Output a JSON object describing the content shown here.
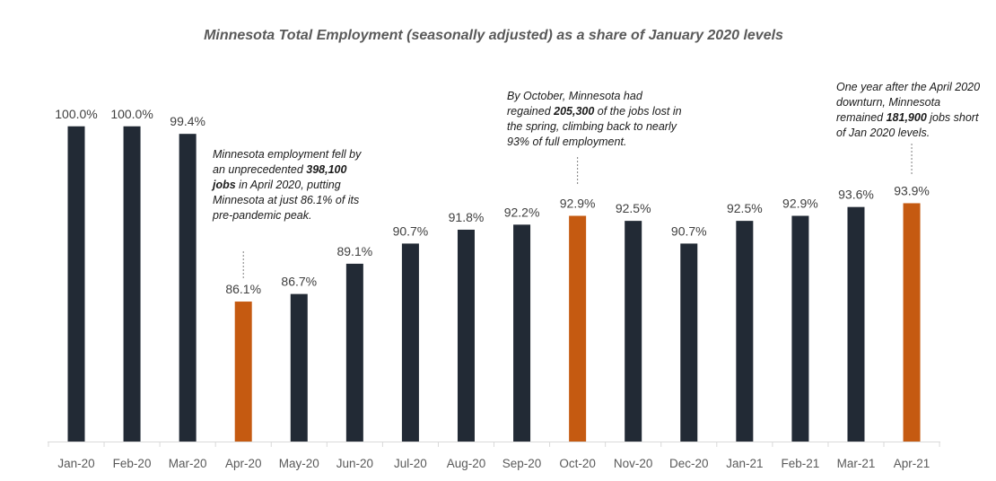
{
  "chart_data": {
    "type": "bar",
    "title": "Minnesota Total Employment (seasonally adjusted) as a share of January 2020 levels",
    "xlabel": "",
    "ylabel": "",
    "ylim": [
      75,
      100
    ],
    "grid": false,
    "categories": [
      "Jan-20",
      "Feb-20",
      "Mar-20",
      "Apr-20",
      "May-20",
      "Jun-20",
      "Jul-20",
      "Aug-20",
      "Sep-20",
      "Oct-20",
      "Nov-20",
      "Dec-20",
      "Jan-21",
      "Feb-21",
      "Mar-21",
      "Apr-21"
    ],
    "values": [
      100.0,
      100.0,
      99.4,
      86.1,
      86.7,
      89.1,
      90.7,
      91.8,
      92.2,
      92.9,
      92.5,
      90.7,
      92.5,
      92.9,
      93.6,
      93.9
    ],
    "data_labels": [
      "100.0%",
      "100.0%",
      "99.4%",
      "86.1%",
      "86.7%",
      "89.1%",
      "90.7%",
      "91.8%",
      "92.2%",
      "92.9%",
      "92.5%",
      "90.7%",
      "92.5%",
      "92.9%",
      "93.6%",
      "93.9%"
    ],
    "highlighted": [
      "Apr-20",
      "Oct-20",
      "Apr-21"
    ],
    "colors": {
      "default": "#222a35",
      "highlight": "#c55a11"
    },
    "annotations": [
      {
        "category": "Apr-20",
        "pre": "Minnesota employment fell by an unprecedented ",
        "bold": "398,100 jobs",
        "post": " in April 2020, putting Minnesota at just 86.1% of its pre-pandemic peak."
      },
      {
        "category": "Oct-20",
        "pre": "By October, Minnesota had regained ",
        "bold": "205,300",
        "post": " of the jobs lost in the spring, climbing back to nearly 93% of full employment."
      },
      {
        "category": "Apr-21",
        "pre": "One year after the April 2020 downturn, Minnesota remained ",
        "bold": "181,900",
        "post": " jobs short of Jan 2020 levels."
      }
    ]
  }
}
